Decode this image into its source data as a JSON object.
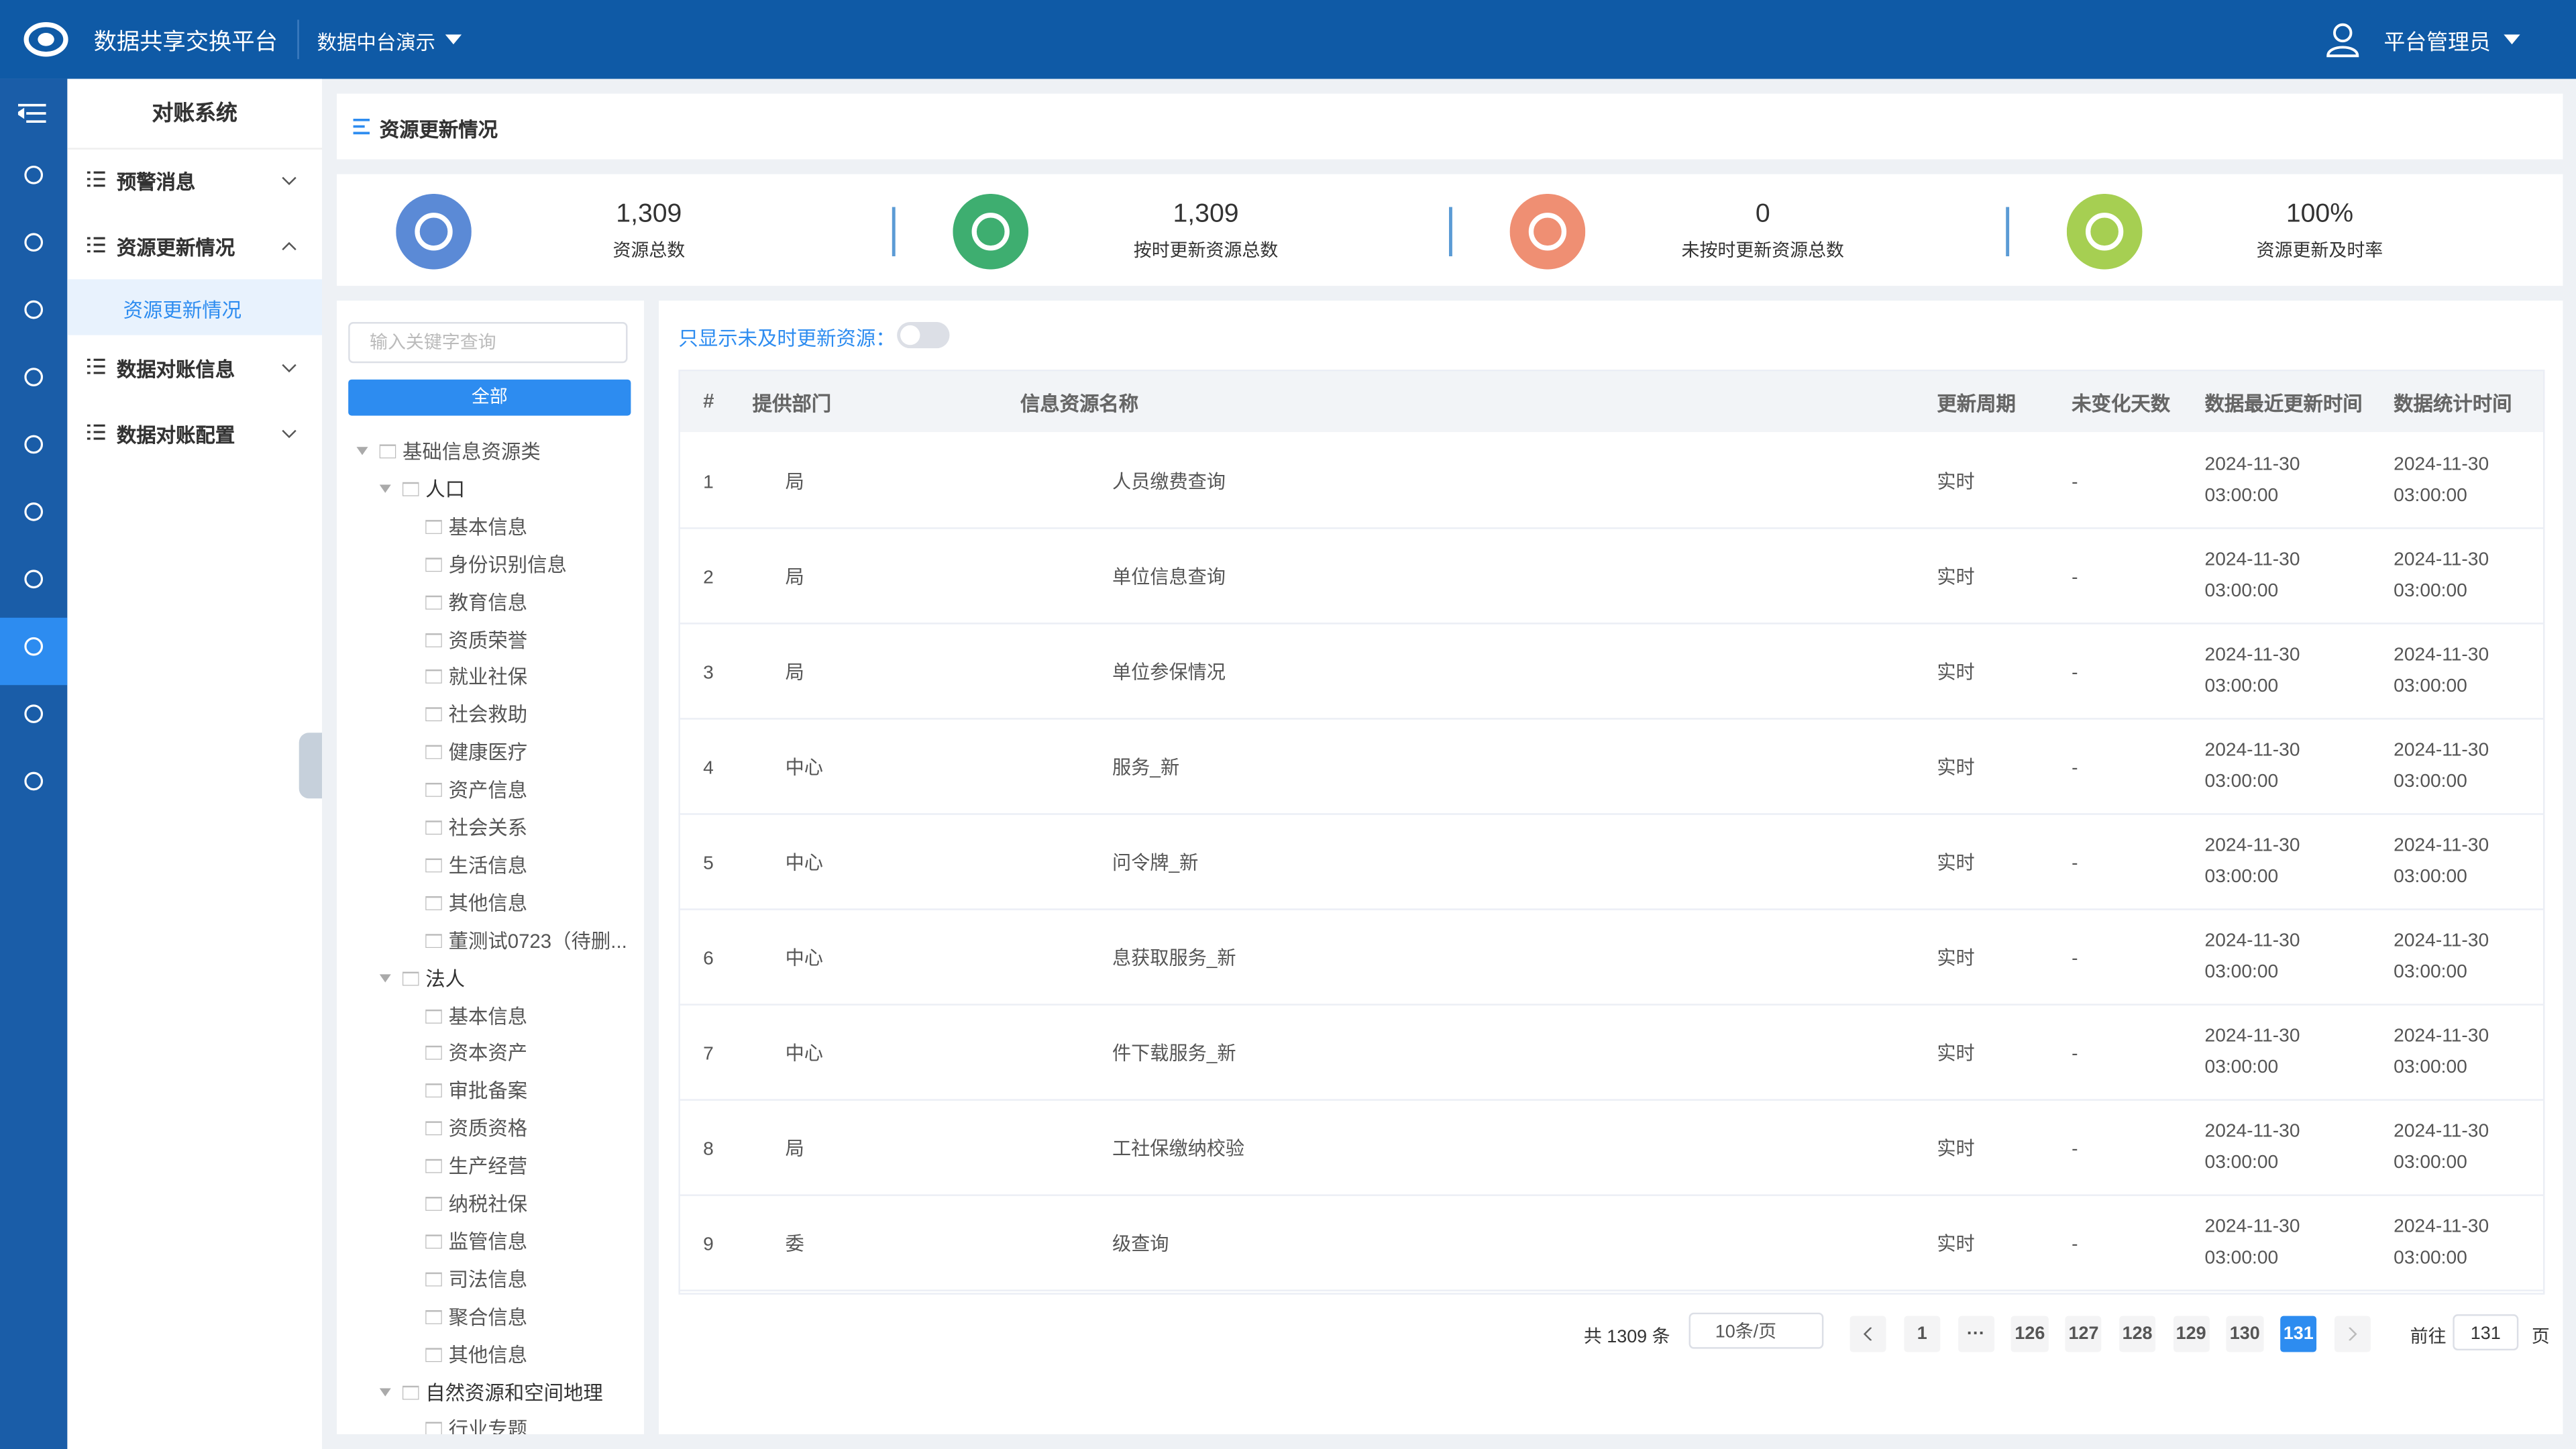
{
  "header": {
    "title": "数据共享交换平台",
    "workspace": "数据中台演示",
    "user": "平台管理员"
  },
  "menu": {
    "title": "对账系统",
    "items": [
      {
        "label": "预警消息"
      },
      {
        "label": "资源更新情况",
        "children": [
          "资源更新情况"
        ]
      },
      {
        "label": "数据对账信息"
      },
      {
        "label": "数据对账配置"
      }
    ]
  },
  "breadcrumb": "资源更新情况",
  "stats": [
    {
      "value": "1,309",
      "label": "资源总数"
    },
    {
      "value": "1,309",
      "label": "按时更新资源总数"
    },
    {
      "value": "0",
      "label": "未按时更新资源总数"
    },
    {
      "value": "100%",
      "label": "资源更新及时率"
    }
  ],
  "tree": {
    "search_placeholder": "输入关键字查询",
    "button": "全部",
    "nodes": [
      {
        "label": "基础信息资源类",
        "children": [
          {
            "label": "人口",
            "children": [
              {
                "label": "基本信息"
              },
              {
                "label": "身份识别信息"
              },
              {
                "label": "教育信息"
              },
              {
                "label": "资质荣誉"
              },
              {
                "label": "就业社保"
              },
              {
                "label": "社会救助"
              },
              {
                "label": "健康医疗"
              },
              {
                "label": "资产信息"
              },
              {
                "label": "社会关系"
              },
              {
                "label": "生活信息"
              },
              {
                "label": "其他信息"
              },
              {
                "label": "董测试0723（待删..."
              }
            ]
          },
          {
            "label": "法人",
            "children": [
              {
                "label": "基本信息"
              },
              {
                "label": "资本资产"
              },
              {
                "label": "审批备案"
              },
              {
                "label": "资质资格"
              },
              {
                "label": "生产经营"
              },
              {
                "label": "纳税社保"
              },
              {
                "label": "监管信息"
              },
              {
                "label": "司法信息"
              },
              {
                "label": "聚合信息"
              },
              {
                "label": "其他信息"
              }
            ]
          },
          {
            "label": "自然资源和空间地理",
            "children": [
              {
                "label": "行业专题"
              }
            ]
          }
        ]
      }
    ]
  },
  "filter_label": "只显示未及时更新资源：",
  "table": {
    "columns": [
      "#",
      "提供部门",
      "信息资源名称",
      "更新周期",
      "未变化天数",
      "数据最近更新时间",
      "数据统计时间"
    ],
    "rows": [
      [
        "1",
        "局",
        "人员缴费查询",
        "实时",
        "-",
        "2024-11-30 03:00:00",
        "2024-11-30 03:00:00"
      ],
      [
        "2",
        "局",
        "单位信息查询",
        "实时",
        "-",
        "2024-11-30 03:00:00",
        "2024-11-30 03:00:00"
      ],
      [
        "3",
        "局",
        "单位参保情况",
        "实时",
        "-",
        "2024-11-30 03:00:00",
        "2024-11-30 03:00:00"
      ],
      [
        "4",
        "中心",
        "服务_新",
        "实时",
        "-",
        "2024-11-30 03:00:00",
        "2024-11-30 03:00:00"
      ],
      [
        "5",
        "中心",
        "问令牌_新",
        "实时",
        "-",
        "2024-11-30 03:00:00",
        "2024-11-30 03:00:00"
      ],
      [
        "6",
        "中心",
        "息获取服务_新",
        "实时",
        "-",
        "2024-11-30 03:00:00",
        "2024-11-30 03:00:00"
      ],
      [
        "7",
        "中心",
        "件下载服务_新",
        "实时",
        "-",
        "2024-11-30 03:00:00",
        "2024-11-30 03:00:00"
      ],
      [
        "8",
        "局",
        "工社保缴纳校验",
        "实时",
        "-",
        "2024-11-30 03:00:00",
        "2024-11-30 03:00:00"
      ],
      [
        "9",
        "委",
        "级查询",
        "实时",
        "-",
        "2024-11-30 03:00:00",
        "2024-11-30 03:00:00"
      ]
    ]
  },
  "pagination": {
    "total": "共 1309 条",
    "page_size": "10条/页",
    "pages": [
      "1",
      "···",
      "126",
      "127",
      "128",
      "129",
      "130",
      "131"
    ],
    "current": "131",
    "goto_label": "前往",
    "goto_value": "131",
    "goto_suffix": "页"
  }
}
